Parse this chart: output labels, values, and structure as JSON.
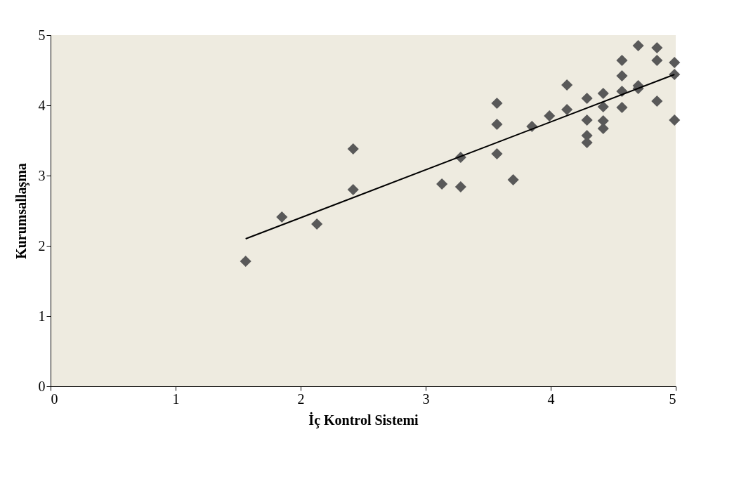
{
  "chart_data": {
    "type": "scatter",
    "xlabel": "İç Kontrol Sistemi",
    "ylabel": "Kurumsallaşma",
    "xlim": [
      0,
      5
    ],
    "ylim": [
      0,
      5
    ],
    "xticks": [
      0,
      1,
      2,
      3,
      4,
      5
    ],
    "yticks": [
      0,
      1,
      2,
      3,
      4,
      5
    ],
    "marker": "diamond",
    "series": [
      {
        "color": "#595959",
        "x": [
          1.56,
          1.85,
          2.13,
          2.42,
          2.42,
          3.13,
          3.28,
          3.28,
          3.57,
          3.57,
          3.57,
          3.7,
          3.85,
          3.99,
          4.13,
          4.13,
          4.29,
          4.29,
          4.29,
          4.29,
          4.42,
          4.42,
          4.42,
          4.42,
          4.57,
          4.57,
          4.57,
          4.57,
          4.7,
          4.7,
          4.7,
          4.85,
          4.85,
          4.85,
          4.99,
          4.99,
          4.99
        ],
        "values": [
          1.78,
          2.41,
          2.31,
          2.8,
          3.38,
          2.88,
          2.84,
          3.26,
          4.03,
          3.73,
          3.31,
          2.94,
          3.7,
          3.85,
          4.29,
          3.94,
          4.1,
          3.79,
          3.57,
          3.47,
          4.17,
          3.98,
          3.78,
          3.67,
          4.64,
          4.42,
          4.2,
          3.97,
          4.85,
          4.28,
          4.24,
          4.82,
          4.64,
          4.06,
          4.61,
          4.44,
          3.79
        ]
      },
      {
        "type": "line",
        "color": "#000000",
        "x": [
          1.56,
          4.99
        ],
        "values": [
          2.1,
          4.44
        ],
        "line_style": "solid",
        "marker": "none"
      }
    ]
  }
}
